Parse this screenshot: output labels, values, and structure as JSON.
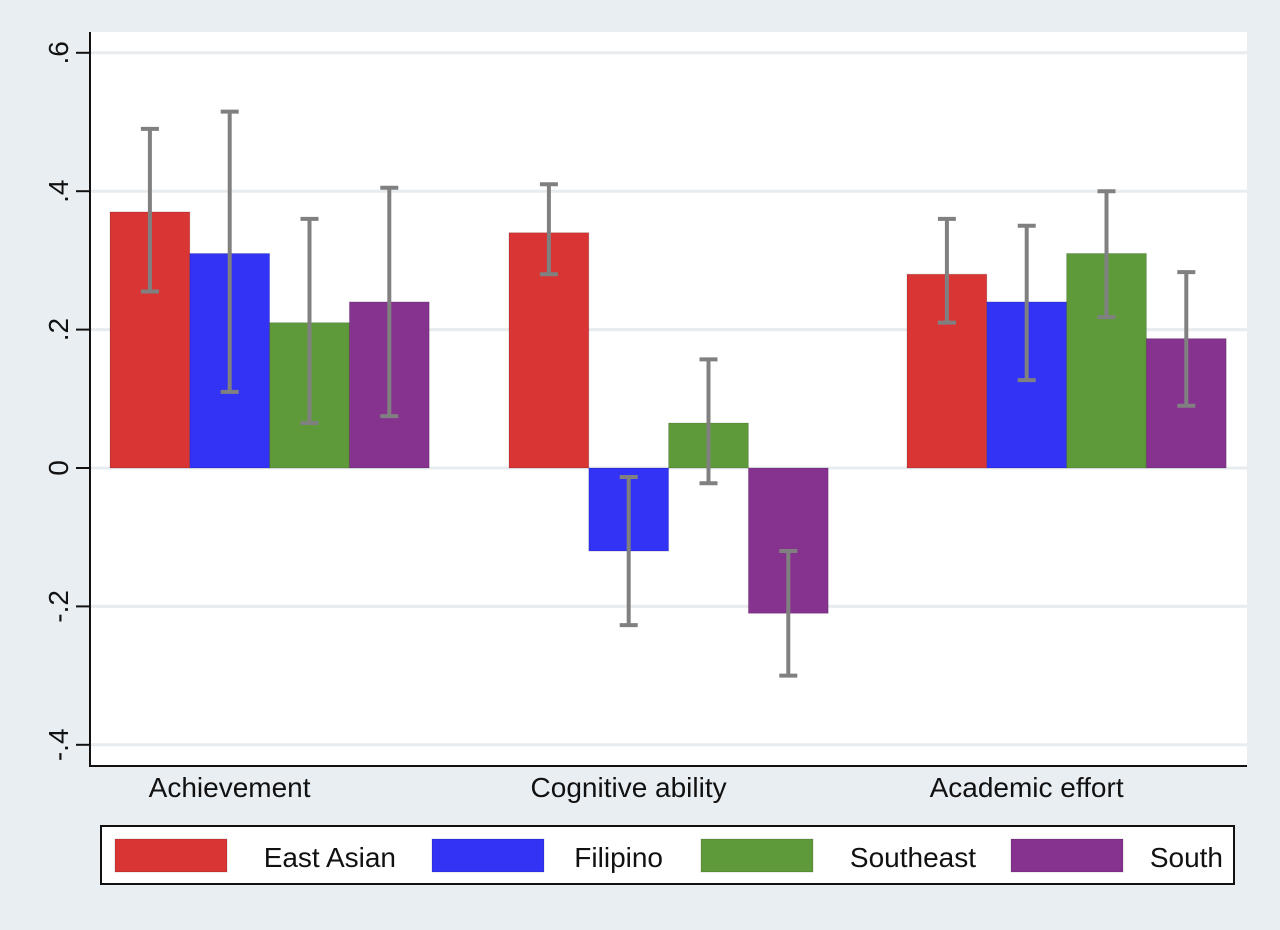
{
  "chart_data": {
    "type": "bar",
    "title": "",
    "xlabel": "",
    "ylabel": "",
    "ylim": [
      -0.43,
      0.63
    ],
    "yticks": [
      -0.4,
      -0.2,
      0,
      0.2,
      0.4,
      0.6
    ],
    "ytick_labels": [
      "-.4",
      "-.2",
      "0",
      ".2",
      ".4",
      ".6"
    ],
    "grid": true,
    "legend_position": "bottom",
    "categories": [
      "Achievement",
      "Cognitive ability",
      "Academic effort"
    ],
    "series": [
      {
        "name": "East Asian",
        "color": "#d93535",
        "values": [
          0.37,
          0.34,
          0.28
        ],
        "ci_low": [
          0.255,
          0.28,
          0.21
        ],
        "ci_high": [
          0.49,
          0.41,
          0.36
        ]
      },
      {
        "name": "Filipino",
        "color": "#3333f5",
        "values": [
          0.31,
          -0.12,
          0.24
        ],
        "ci_low": [
          0.11,
          -0.227,
          0.127
        ],
        "ci_high": [
          0.515,
          -0.013,
          0.35
        ]
      },
      {
        "name": "Southeast",
        "color": "#5f9a3a",
        "values": [
          0.21,
          0.065,
          0.31
        ],
        "ci_low": [
          0.065,
          -0.022,
          0.218
        ],
        "ci_high": [
          0.36,
          0.157,
          0.4
        ]
      },
      {
        "name": "South",
        "color": "#85338f",
        "values": [
          0.24,
          -0.21,
          0.187
        ],
        "ci_low": [
          0.075,
          -0.3,
          0.09
        ],
        "ci_high": [
          0.405,
          -0.12,
          0.283
        ]
      }
    ],
    "errorbar_color": "#808080"
  }
}
